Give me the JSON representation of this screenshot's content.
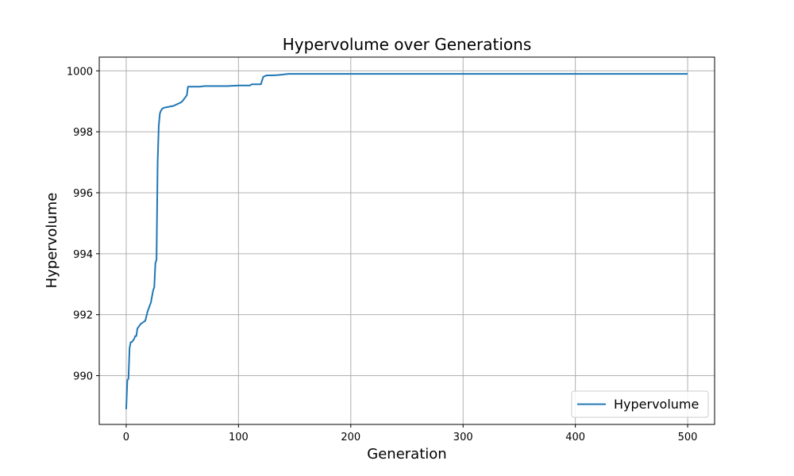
{
  "chart_data": {
    "type": "line",
    "title": "Hypervolume over Generations",
    "xlabel": "Generation",
    "ylabel": "Hypervolume",
    "xlim": [
      -24,
      524
    ],
    "ylim": [
      988.4,
      1000.45
    ],
    "xticks": [
      0,
      100,
      200,
      300,
      400,
      500
    ],
    "yticks": [
      990,
      992,
      994,
      996,
      998,
      1000
    ],
    "grid": true,
    "legend_position": "lower-right",
    "series": [
      {
        "name": "Hypervolume",
        "color": "#1f77b4",
        "x": [
          0,
          1,
          2,
          3,
          4,
          5,
          7,
          8,
          9,
          10,
          11,
          13,
          15,
          17,
          19,
          20,
          21,
          22,
          24,
          25,
          26,
          27,
          28,
          29,
          30,
          31,
          32,
          33,
          35,
          38,
          42,
          45,
          48,
          50,
          53,
          54,
          55,
          60,
          65,
          70,
          80,
          90,
          100,
          105,
          110,
          112,
          115,
          120,
          122,
          123,
          125,
          130,
          135,
          140,
          142,
          145,
          150,
          160,
          200,
          300,
          400,
          500
        ],
        "y": [
          988.9,
          989.85,
          989.9,
          990.9,
          991.1,
          991.1,
          991.2,
          991.3,
          991.3,
          991.55,
          991.6,
          991.7,
          991.75,
          991.8,
          992.1,
          992.2,
          992.3,
          992.4,
          992.8,
          992.9,
          993.7,
          993.8,
          997.0,
          998.2,
          998.6,
          998.7,
          998.75,
          998.78,
          998.8,
          998.82,
          998.85,
          998.9,
          998.95,
          999.0,
          999.15,
          999.2,
          999.48,
          999.48,
          999.48,
          999.5,
          999.5,
          999.5,
          999.52,
          999.52,
          999.52,
          999.56,
          999.56,
          999.56,
          999.8,
          999.82,
          999.85,
          999.85,
          999.86,
          999.88,
          999.89,
          999.9,
          999.9,
          999.9,
          999.9,
          999.9,
          999.9,
          999.9
        ]
      }
    ]
  }
}
